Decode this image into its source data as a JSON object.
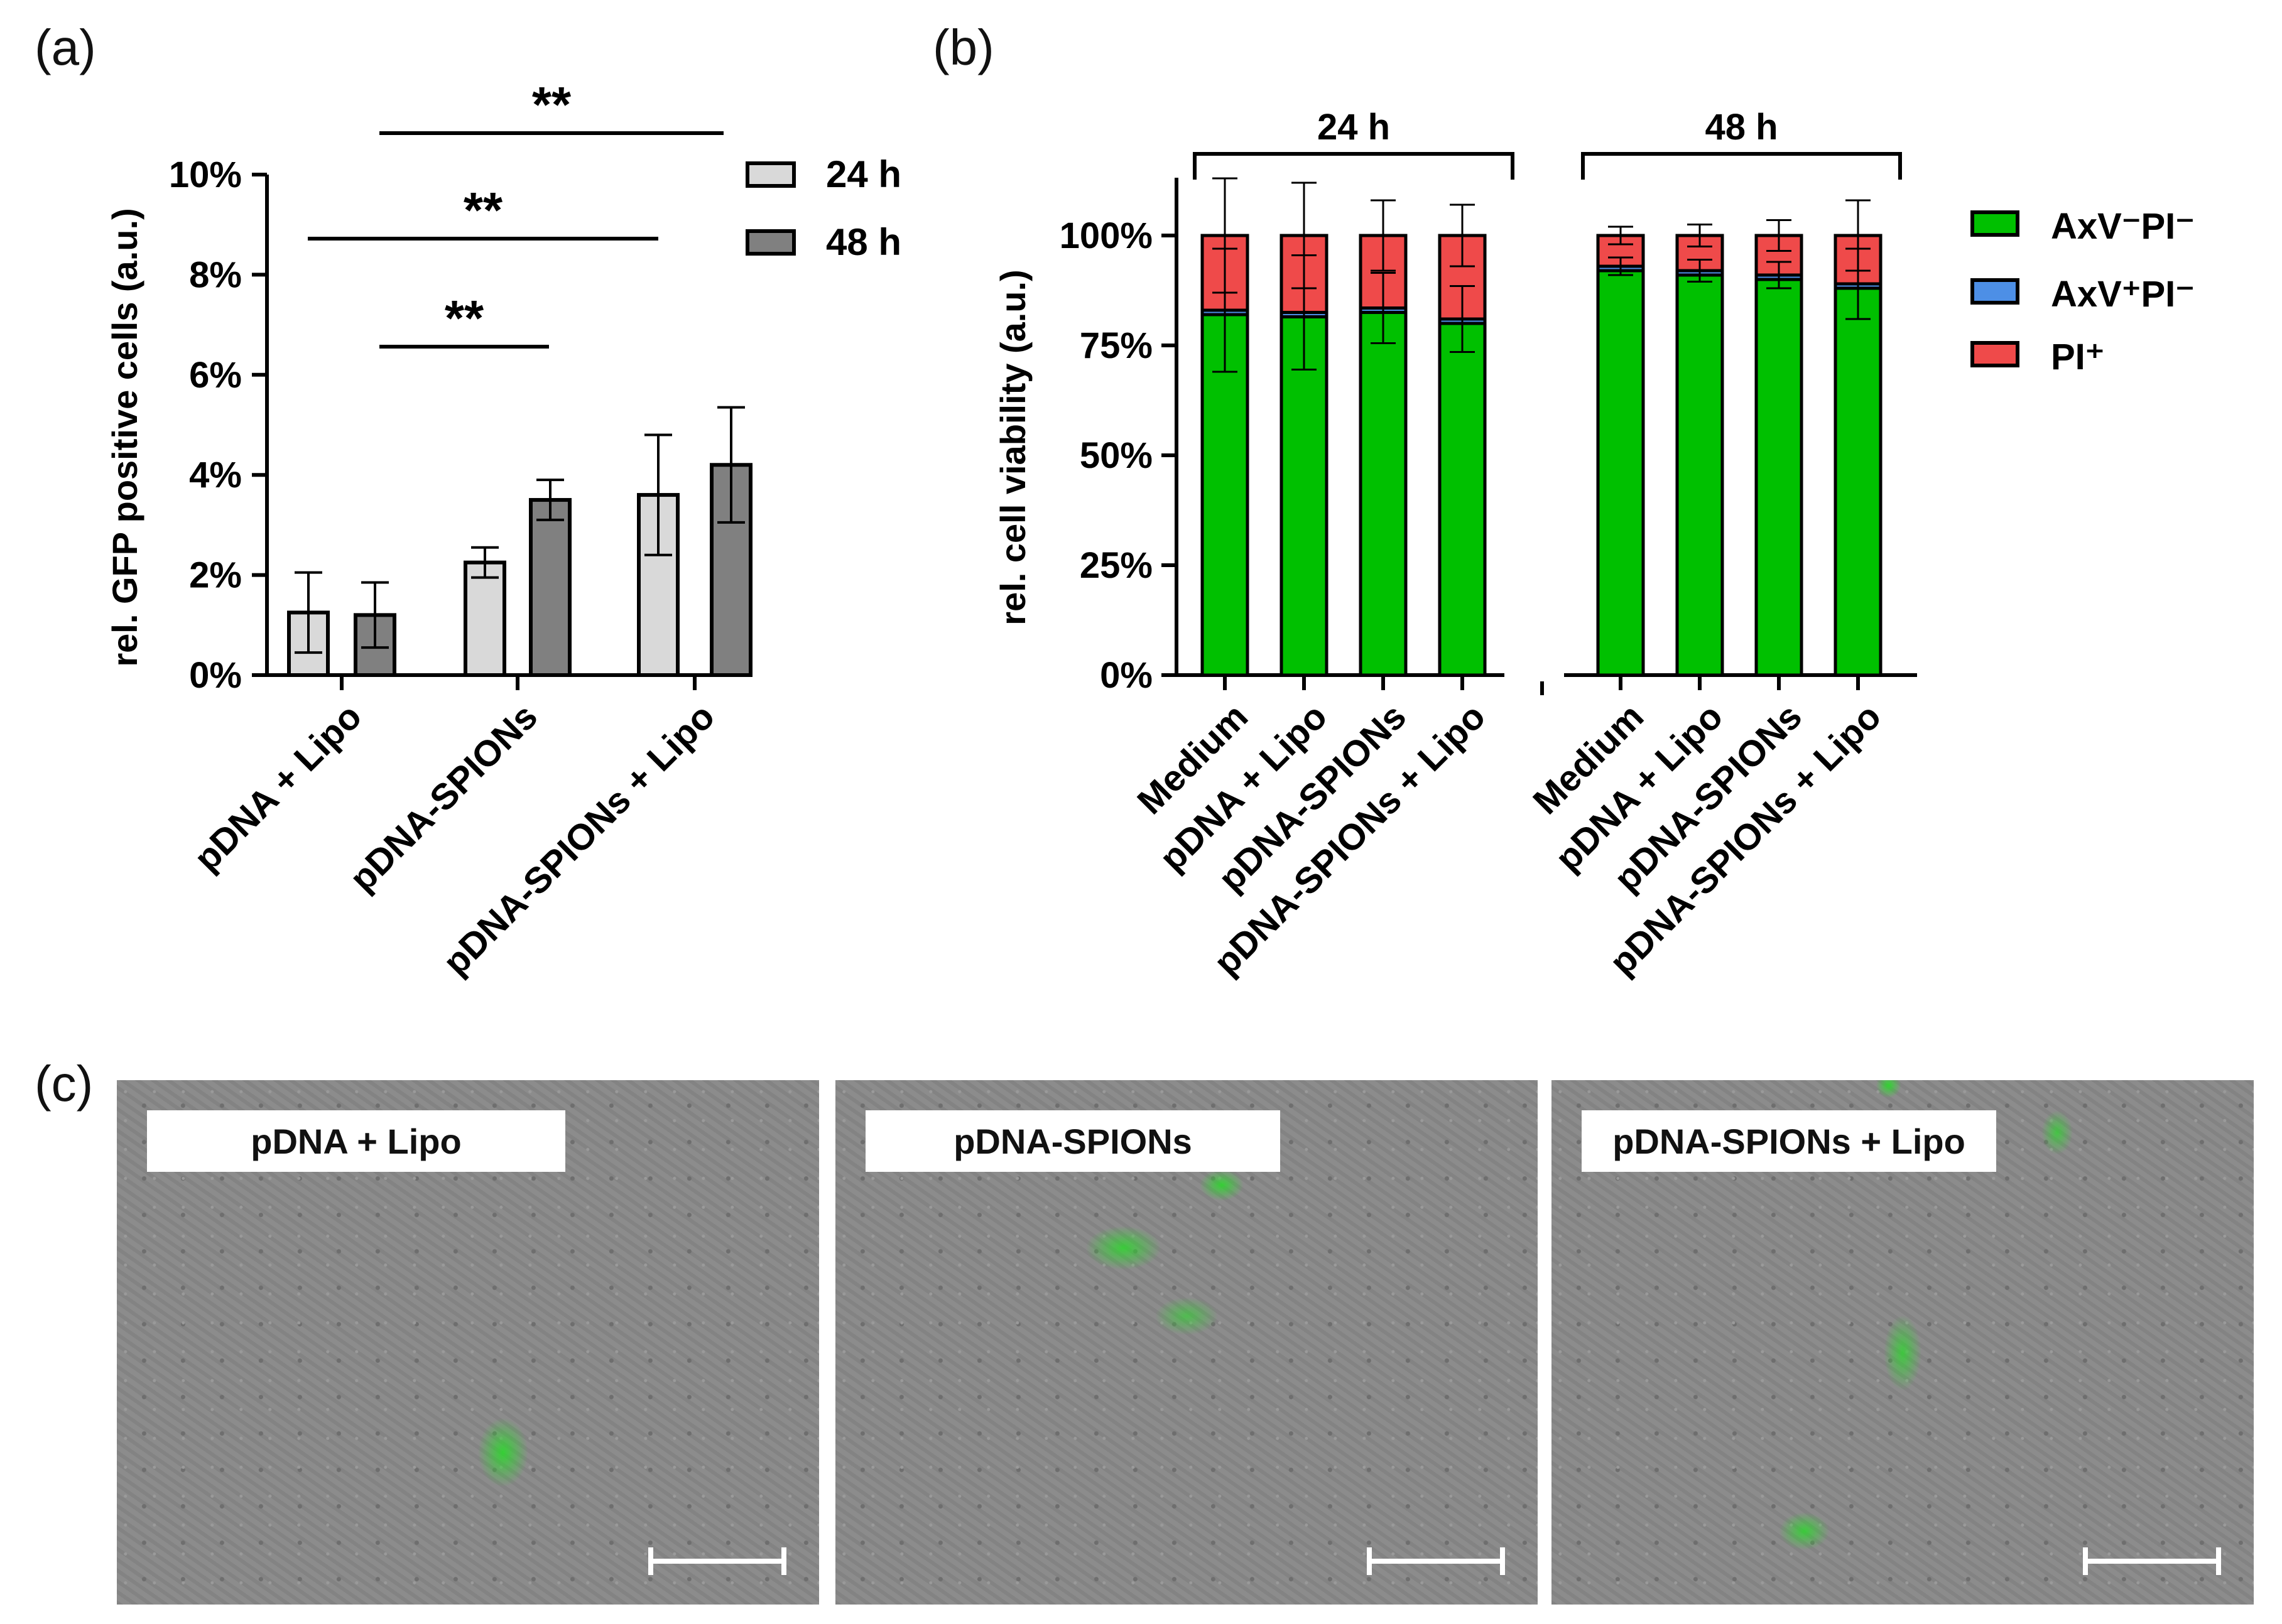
{
  "panels": {
    "a": "(a)",
    "b": "(b)",
    "c": "(c)"
  },
  "chart_data": [
    {
      "id": "a",
      "type": "bar",
      "ylabel": "rel. GFP positive cells (a.u.)",
      "ylim": [
        0,
        10
      ],
      "yticks": [
        "0%",
        "2%",
        "4%",
        "6%",
        "8%",
        "10%"
      ],
      "categories": [
        "pDNA + Lipo",
        "pDNA-SPIONs",
        "pDNA-SPIONs + Lipo"
      ],
      "series": [
        {
          "name": "24 h",
          "color": "#d9d9d9",
          "values": [
            1.25,
            2.25,
            3.6
          ],
          "errors": [
            0.8,
            0.3,
            1.2
          ]
        },
        {
          "name": "48 h",
          "color": "#808080",
          "values": [
            1.2,
            3.5,
            4.2
          ],
          "errors": [
            0.65,
            0.4,
            1.15
          ]
        }
      ],
      "significance": [
        {
          "label": "**",
          "from": [
            0,
            1
          ],
          "to": [
            2,
            1
          ]
        },
        {
          "label": "**",
          "from": [
            0,
            0
          ],
          "to": [
            2,
            0
          ]
        },
        {
          "label": "**",
          "from": [
            0,
            1
          ],
          "to": [
            1,
            0
          ]
        }
      ],
      "legend": "top-right"
    },
    {
      "id": "b",
      "type": "bar",
      "stacked": true,
      "ylabel": "rel. cell viability (a.u.)",
      "ylim": [
        0,
        100
      ],
      "yticks": [
        "0%",
        "25%",
        "50%",
        "75%",
        "100%"
      ],
      "groups": [
        {
          "label": "24 h",
          "categories": [
            "Medium",
            "pDNA + Lipo",
            "pDNA-SPIONs",
            "pDNA-SPIONs + Lipo"
          ]
        },
        {
          "label": "48 h",
          "categories": [
            "Medium",
            "pDNA + Lipo",
            "pDNA-SPIONs",
            "pDNA-SPIONs + Lipo"
          ]
        }
      ],
      "series": [
        {
          "name": "AxV⁻PI⁻",
          "color": "#00c000",
          "values": [
            82,
            81.5,
            82.5,
            80,
            92,
            91,
            90,
            88
          ],
          "errors": [
            14,
            13,
            8,
            7.5,
            2,
            2.5,
            3,
            8
          ]
        },
        {
          "name": "AxV⁺PI⁻",
          "color": "#4d8fe6",
          "values": [
            1,
            1,
            1,
            1,
            1,
            1,
            1,
            1
          ]
        },
        {
          "name": "PI⁺",
          "color": "#ef4a4a",
          "values": [
            17,
            17.5,
            16.5,
            19,
            7,
            8,
            9,
            11
          ],
          "errors": [
            13,
            12,
            8,
            7,
            2,
            2.5,
            3.5,
            8
          ]
        }
      ],
      "legend": "right"
    }
  ],
  "micrographs": [
    {
      "label": "pDNA + Lipo"
    },
    {
      "label": "pDNA-SPIONs"
    },
    {
      "label": "pDNA-SPIONs + Lipo"
    }
  ]
}
